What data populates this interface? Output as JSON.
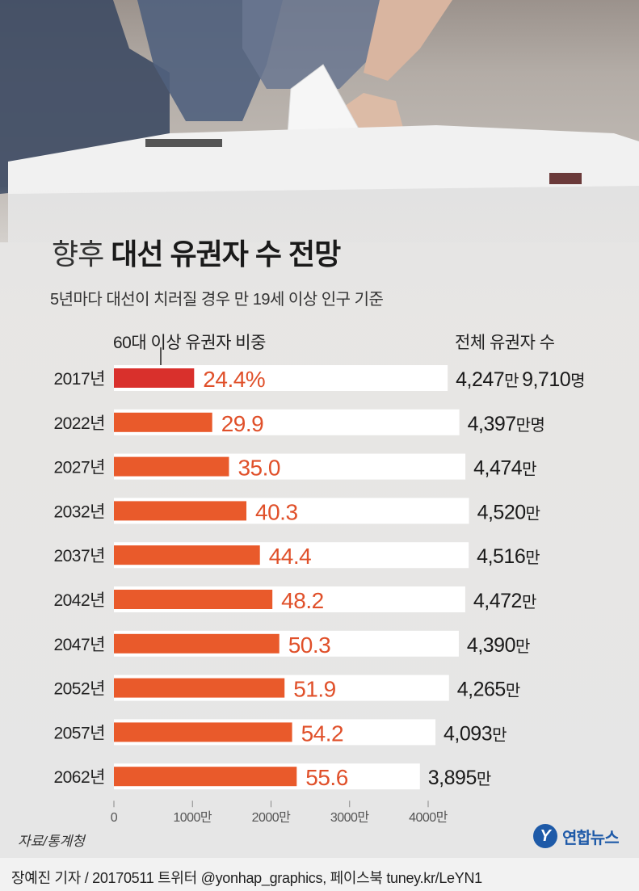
{
  "header": {
    "title_light": "향후",
    "title_bold": "대선 유권자 수 전망",
    "subtitle": "5년마다 대선이 치러질 경우 만 19세 이상 인구 기준"
  },
  "labels": {
    "share_series": "60대 이상 유권자 비중",
    "total_series": "전체 유권자 수"
  },
  "colors": {
    "bar_first": "#d9302c",
    "bar": "#e95a2b",
    "value_text": "#e0502a",
    "background_bar": "#ffffff"
  },
  "chart_data": {
    "type": "bar",
    "orientation": "horizontal",
    "categories": [
      "2017년",
      "2022년",
      "2027년",
      "2032년",
      "2037년",
      "2042년",
      "2047년",
      "2052년",
      "2057년",
      "2062년"
    ],
    "series": [
      {
        "name": "60대 이상 유권자 비중",
        "values": [
          24.4,
          29.9,
          35.0,
          40.3,
          44.4,
          48.2,
          50.3,
          51.9,
          54.2,
          55.6
        ],
        "value_labels": [
          "24.4%",
          "29.9",
          "35.0",
          "40.3",
          "44.4",
          "48.2",
          "50.3",
          "51.9",
          "54.2",
          "55.6"
        ]
      },
      {
        "name": "전체 유권자 수",
        "values": [
          4247.971,
          4397,
          4474,
          4520,
          4516,
          4472,
          4390,
          4265,
          4093,
          3895
        ],
        "value_labels": [
          {
            "num": "4,247",
            "unit": "만",
            "num2": "9,710",
            "unit2": "명"
          },
          {
            "num": "4,397",
            "unit": "만명"
          },
          {
            "num": "4,474",
            "unit": "만"
          },
          {
            "num": "4,520",
            "unit": "만"
          },
          {
            "num": "4,516",
            "unit": "만"
          },
          {
            "num": "4,472",
            "unit": "만"
          },
          {
            "num": "4,390",
            "unit": "만"
          },
          {
            "num": "4,265",
            "unit": "만"
          },
          {
            "num": "4,093",
            "unit": "만"
          },
          {
            "num": "3,895",
            "unit": "만"
          }
        ]
      }
    ],
    "x_ticks": [
      "0",
      "1000만",
      "2000만",
      "3000만",
      "4000만"
    ],
    "x_tick_values": [
      0,
      1000,
      2000,
      3000,
      4000
    ],
    "xlim": [
      0,
      4000
    ]
  },
  "footer": {
    "source": "자료/통계청",
    "credit": "장예진 기자 / 20170511 트위터 @yonhap_graphics, 페이스북 tuney.kr/LeYN1",
    "logo_mark": "Y",
    "logo_text": "연합뉴스"
  }
}
